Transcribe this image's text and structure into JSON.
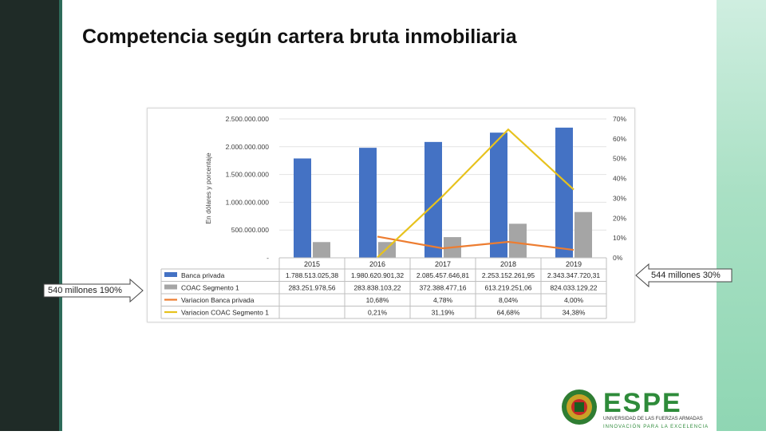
{
  "slide": {
    "title": "Competencia según cartera bruta inmobiliaria"
  },
  "callouts": {
    "left": "540 millones 190%",
    "right": "544 millones 30%"
  },
  "logo": {
    "name": "ESPE",
    "subtitle": "UNIVERSIDAD DE LAS FUERZAS ARMADAS",
    "tagline": "INNOVACIÓN PARA LA EXCELENCIA"
  },
  "colors": {
    "banca": "#4472c4",
    "coac": "#a5a5a5",
    "var_banca": "#ed7d31",
    "var_coac": "#e7c21d"
  },
  "chart_data": {
    "type": "bar",
    "title": "",
    "ylabel": "En dólares y porcentaje",
    "ylim": [
      0,
      2500000000
    ],
    "y2lim": [
      0,
      0.7
    ],
    "y_ticks": [
      "-",
      "500.000.000",
      "1.000.000.000",
      "1.500.000.000",
      "2.000.000.000",
      "2.500.000.000"
    ],
    "y2_ticks": [
      "0%",
      "10%",
      "20%",
      "30%",
      "40%",
      "50%",
      "60%",
      "70%"
    ],
    "categories": [
      "2015",
      "2016",
      "2017",
      "2018",
      "2019"
    ],
    "series": [
      {
        "name": "Banca privada",
        "kind": "bar",
        "values": [
          1788513025.38,
          1980620901.32,
          2085457646.81,
          2253152261.95,
          2343347720.31
        ],
        "labels": [
          "1.788.513.025,38",
          "1.980.620.901,32",
          "2.085.457.646,81",
          "2.253.152.261,95",
          "2.343.347.720,31"
        ]
      },
      {
        "name": "COAC Segmento 1",
        "kind": "bar",
        "values": [
          283251978.56,
          283838103.22,
          372388477.16,
          613219251.06,
          824033129.22
        ],
        "labels": [
          "283.251.978,56",
          "283.838.103,22",
          "372.388.477,16",
          "613.219.251,06",
          "824.033.129,22"
        ]
      },
      {
        "name": "Variacion Banca privada",
        "kind": "line",
        "values": [
          null,
          0.1068,
          0.0478,
          0.0804,
          0.04
        ],
        "labels": [
          "",
          "10,68%",
          "4,78%",
          "8,04%",
          "4,00%"
        ]
      },
      {
        "name": "Variacion COAC Segmento 1",
        "kind": "line",
        "values": [
          null,
          0.0021,
          0.3119,
          0.6468,
          0.3438
        ],
        "labels": [
          "",
          "0,21%",
          "31,19%",
          "64,68%",
          "34,38%"
        ]
      }
    ],
    "legend": "data-table"
  }
}
